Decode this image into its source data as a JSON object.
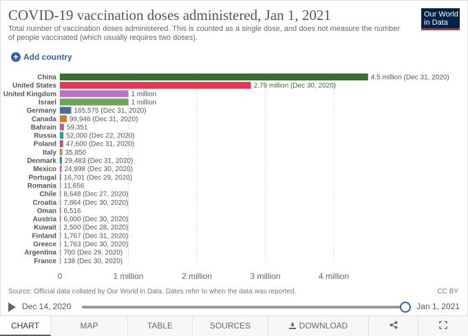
{
  "header": {
    "title": "COVID-19 vaccination doses administered, Jan 1, 2021",
    "subtitle": "Total number of vaccination doses administered. This is counted as a single dose, and does not measure the number of people vaccinated (which usually requires two doses).",
    "logo_line1": "Our World",
    "logo_line2": "in Data"
  },
  "controls": {
    "add_country_label": "Add country"
  },
  "chart_data": {
    "type": "bar",
    "orientation": "horizontal",
    "categories": [
      "China",
      "United States",
      "United Kingdom",
      "Israel",
      "Germany",
      "Canada",
      "Bahrain",
      "Russia",
      "Poland",
      "Italy",
      "Denmark",
      "Mexico",
      "Portugal",
      "Romania",
      "Chile",
      "Croatia",
      "Oman",
      "Austria",
      "Kuwait",
      "Finland",
      "Greece",
      "Argentina",
      "France"
    ],
    "values": [
      4500000,
      2790000,
      1000000,
      1000000,
      165575,
      99946,
      59351,
      52000,
      47600,
      35850,
      29483,
      24998,
      16701,
      11656,
      8648,
      7864,
      6516,
      6000,
      2500,
      1767,
      1763,
      700,
      138
    ],
    "value_labels": [
      "4.5 million (Dec 31, 2020)",
      "2.79 million (Dec 30, 2020)",
      "1 million",
      "1 million",
      "165,575 (Dec 31, 2020)",
      "99,946 (Dec 31, 2020)",
      "59,351",
      "52,000 (Dec 22, 2020)",
      "47,600 (Dec 31, 2020)",
      "35,850",
      "29,483 (Dec 31, 2020)",
      "24,998 (Dec 30, 2020)",
      "16,701 (Dec 29, 2020)",
      "11,656",
      "8,648 (Dec 27, 2020)",
      "7,864 (Dec 30, 2020)",
      "6,516",
      "6,000 (Dec 30, 2020)",
      "2,500 (Dec 28, 2020)",
      "1,767 (Dec 31, 2020)",
      "1,763 (Dec 30, 2020)",
      "700 (Dec 29, 2020)",
      "138 (Dec 30, 2020)"
    ],
    "colors": [
      "#3d6b35",
      "#e03b55",
      "#b674c5",
      "#6fa35c",
      "#4b6b99",
      "#cc7a2e",
      "#b06890",
      "#2aa193",
      "#b25380",
      "#bf8a5a",
      "#2f7e92",
      "#d65a8e",
      "#3d8a8a",
      "#d98aa0",
      "#d9897b",
      "#d9889e",
      "#9c6b9c",
      "#d95a6b",
      "#d99a9a",
      "#aaaaaa",
      "#aaaaaa",
      "#aaaaaa",
      "#aaaaaa"
    ],
    "x_ticks": [
      "0",
      "1 million",
      "2 million",
      "3 million",
      "4 million"
    ],
    "x_tick_values": [
      0,
      1000000,
      2000000,
      3000000,
      4000000
    ],
    "xlim": [
      0,
      4500000
    ],
    "grid": true
  },
  "footer": {
    "source": "Source: Official data collated by Our World in Data. Dates refer to when the data was reported.",
    "license": "CC BY"
  },
  "timeline": {
    "start_label": "Dec 14, 2020",
    "end_label": "Jan 1, 2021",
    "position_fraction": 1.0
  },
  "tabs": {
    "chart": "CHART",
    "map": "MAP",
    "table": "TABLE",
    "sources": "SOURCES",
    "download": "DOWNLOAD"
  },
  "icons": {
    "share": "share-icon",
    "fullscreen": "fullscreen-icon",
    "play": "play-icon",
    "download": "download-icon"
  }
}
